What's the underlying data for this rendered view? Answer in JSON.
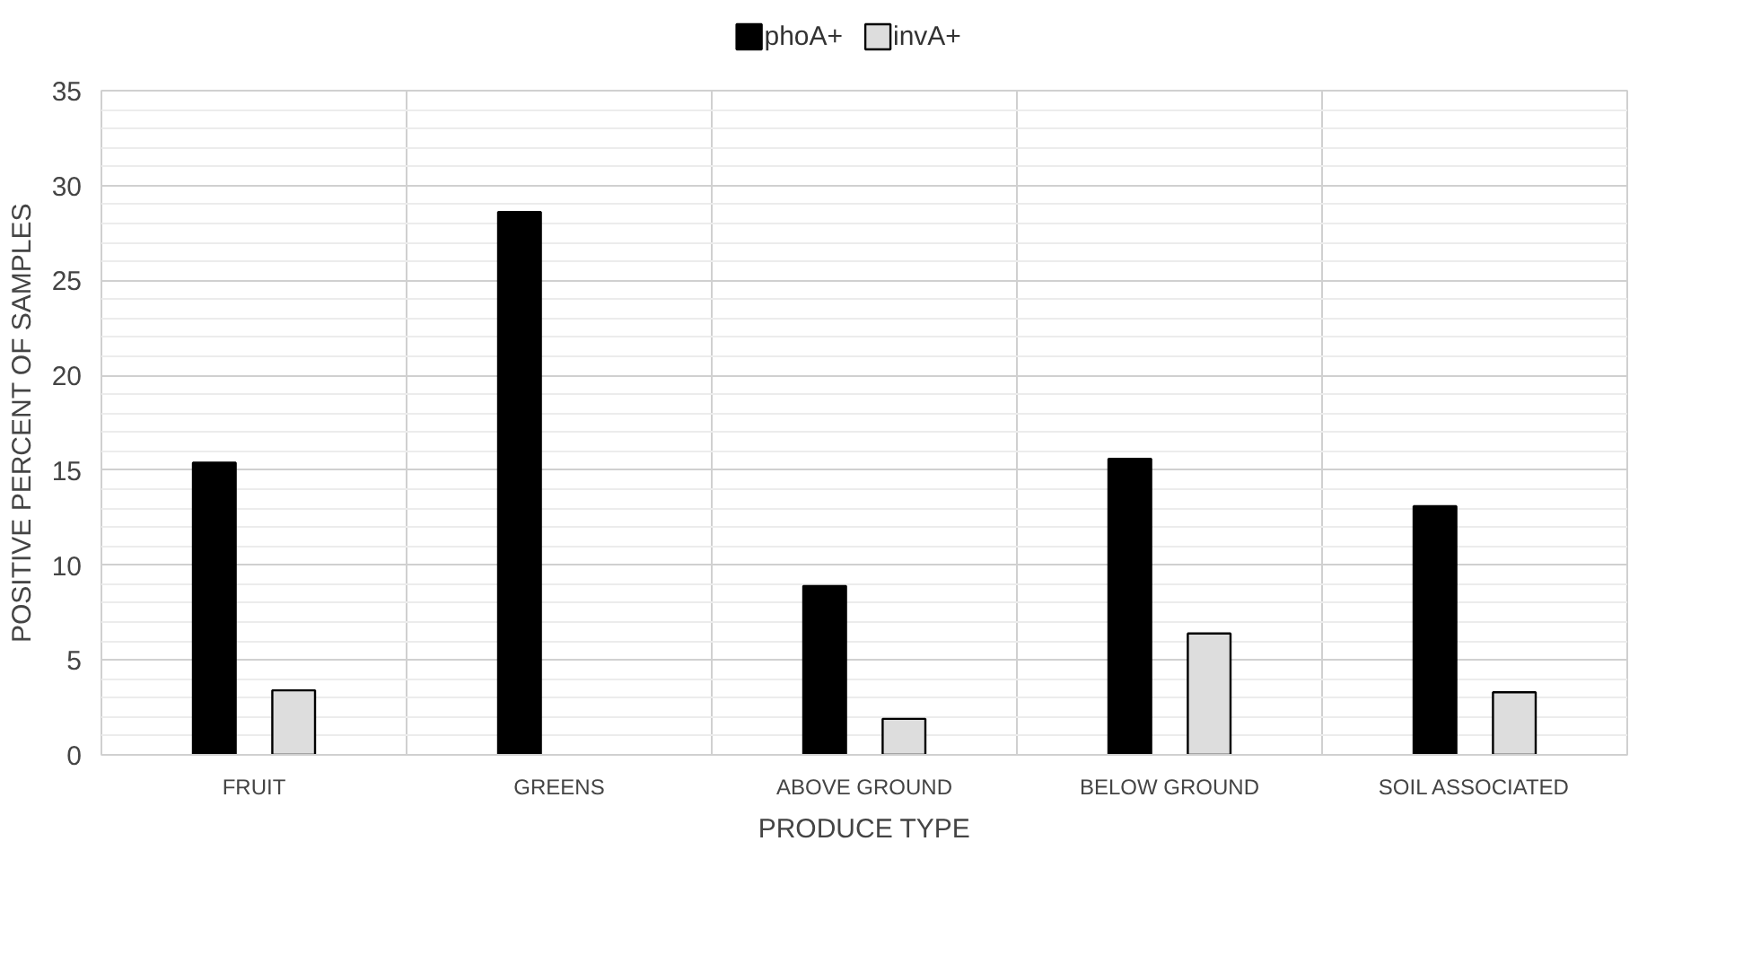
{
  "chart_data": {
    "type": "bar",
    "xlabel": "PRODUCE TYPE",
    "ylabel": "POSITIVE PERCENT OF SAMPLES",
    "categories": [
      "FRUIT",
      "GREENS",
      "ABOVE GROUND",
      "BELOW GROUND",
      "SOIL ASSOCIATED"
    ],
    "series": [
      {
        "name": "phoA+",
        "color": "#000000",
        "values": [
          15.4,
          28.6,
          8.9,
          15.6,
          13.1
        ]
      },
      {
        "name": "invA+",
        "color": "#dddddd",
        "values": [
          3.4,
          null,
          1.9,
          6.4,
          3.3
        ]
      }
    ],
    "ylim": [
      0,
      35
    ],
    "yticks": [
      0,
      5,
      10,
      15,
      20,
      25,
      30,
      35
    ],
    "grid": true,
    "legend": "top"
  }
}
